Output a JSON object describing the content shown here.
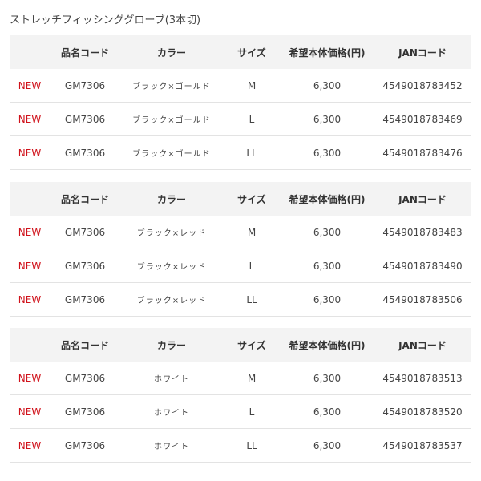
{
  "title": "ストレッチフィッシンググローブ(3本切)",
  "headers": [
    "",
    "品名コード",
    "カラー",
    "サイズ",
    "希望本体価格(円)",
    "JANコード"
  ],
  "new_color": "#d0121b",
  "tables": [
    {
      "rows": [
        {
          "badge": "NEW",
          "code": "GM7306",
          "color": "ブラック×ゴールド",
          "size": "M",
          "price": "6,300",
          "jan": "4549018783452"
        },
        {
          "badge": "NEW",
          "code": "GM7306",
          "color": "ブラック×ゴールド",
          "size": "L",
          "price": "6,300",
          "jan": "4549018783469"
        },
        {
          "badge": "NEW",
          "code": "GM7306",
          "color": "ブラック×ゴールド",
          "size": "LL",
          "price": "6,300",
          "jan": "4549018783476"
        }
      ]
    },
    {
      "rows": [
        {
          "badge": "NEW",
          "code": "GM7306",
          "color": "ブラック×レッド",
          "size": "M",
          "price": "6,300",
          "jan": "4549018783483"
        },
        {
          "badge": "NEW",
          "code": "GM7306",
          "color": "ブラック×レッド",
          "size": "L",
          "price": "6,300",
          "jan": "4549018783490"
        },
        {
          "badge": "NEW",
          "code": "GM7306",
          "color": "ブラック×レッド",
          "size": "LL",
          "price": "6,300",
          "jan": "4549018783506"
        }
      ]
    },
    {
      "rows": [
        {
          "badge": "NEW",
          "code": "GM7306",
          "color": "ホワイト",
          "size": "M",
          "price": "6,300",
          "jan": "4549018783513"
        },
        {
          "badge": "NEW",
          "code": "GM7306",
          "color": "ホワイト",
          "size": "L",
          "price": "6,300",
          "jan": "4549018783520"
        },
        {
          "badge": "NEW",
          "code": "GM7306",
          "color": "ホワイト",
          "size": "LL",
          "price": "6,300",
          "jan": "4549018783537"
        }
      ]
    }
  ]
}
